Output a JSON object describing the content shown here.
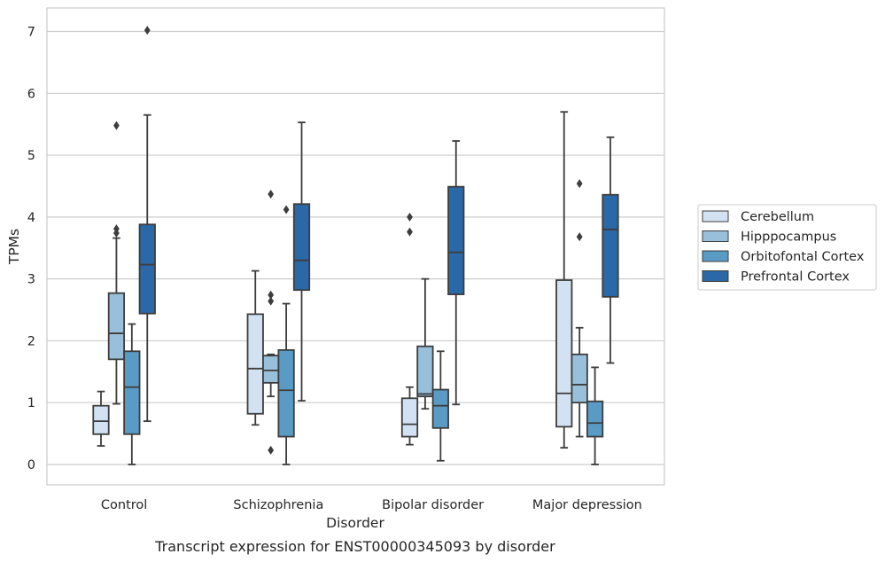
{
  "chart_data": {
    "type": "box",
    "title": "",
    "caption": "Transcript expression for ENST00000345093 by disorder",
    "xlabel": "Disorder",
    "ylabel": "TPMs",
    "ylim": [
      -0.33,
      7.38
    ],
    "yticks": [
      0,
      1,
      2,
      3,
      4,
      5,
      6,
      7
    ],
    "grid": "horizontal",
    "legend_position": "right",
    "categories": [
      "Control",
      "Schizophrenia",
      "Bipolar disorder",
      "Major depression"
    ],
    "series": [
      {
        "name": "Cerebellum",
        "color": "#d2e2f2",
        "boxes": [
          {
            "whislo": 0.3,
            "q1": 0.49,
            "med": 0.7,
            "q3": 0.95,
            "whishi": 1.18,
            "fliers": []
          },
          {
            "whislo": 0.64,
            "q1": 0.82,
            "med": 1.55,
            "q3": 2.43,
            "whishi": 3.13,
            "fliers": []
          },
          {
            "whislo": 0.32,
            "q1": 0.45,
            "med": 0.65,
            "q3": 1.07,
            "whishi": 1.25,
            "fliers": [
              3.76,
              4.0
            ]
          },
          {
            "whislo": 0.27,
            "q1": 0.61,
            "med": 1.15,
            "q3": 2.98,
            "whishi": 5.7,
            "fliers": []
          }
        ]
      },
      {
        "name": "Hipppocampus",
        "color": "#99c0db",
        "boxes": [
          {
            "whislo": 0.98,
            "q1": 1.7,
            "med": 2.12,
            "q3": 2.77,
            "whishi": 3.66,
            "fliers": [
              3.74,
              3.81,
              5.48
            ]
          },
          {
            "whislo": 1.1,
            "q1": 1.32,
            "med": 1.52,
            "q3": 1.76,
            "whishi": 1.78,
            "fliers": [
              0.23,
              2.64,
              2.74,
              4.37
            ]
          },
          {
            "whislo": 0.9,
            "q1": 1.1,
            "med": 1.14,
            "q3": 1.91,
            "whishi": 3.0,
            "fliers": []
          },
          {
            "whislo": 0.45,
            "q1": 1.0,
            "med": 1.29,
            "q3": 1.78,
            "whishi": 2.21,
            "fliers": [
              3.68,
              4.54
            ]
          }
        ]
      },
      {
        "name": "Orbitofontal Cortex",
        "color": "#5a9bc6",
        "boxes": [
          {
            "whislo": 0.0,
            "q1": 0.49,
            "med": 1.25,
            "q3": 1.83,
            "whishi": 2.27,
            "fliers": []
          },
          {
            "whislo": 0.0,
            "q1": 0.45,
            "med": 1.2,
            "q3": 1.85,
            "whishi": 2.6,
            "fliers": [
              4.12
            ]
          },
          {
            "whislo": 0.06,
            "q1": 0.59,
            "med": 0.95,
            "q3": 1.21,
            "whishi": 1.83,
            "fliers": []
          },
          {
            "whislo": 0.0,
            "q1": 0.45,
            "med": 0.67,
            "q3": 1.02,
            "whishi": 1.57,
            "fliers": []
          }
        ]
      },
      {
        "name": "Prefrontal Cortex",
        "color": "#2a68a8",
        "boxes": [
          {
            "whislo": 0.7,
            "q1": 2.44,
            "med": 3.23,
            "q3": 3.88,
            "whishi": 5.65,
            "fliers": [
              7.02
            ]
          },
          {
            "whislo": 1.03,
            "q1": 2.82,
            "med": 3.3,
            "q3": 4.21,
            "whishi": 5.53,
            "fliers": []
          },
          {
            "whislo": 0.97,
            "q1": 2.75,
            "med": 3.43,
            "q3": 4.49,
            "whishi": 5.23,
            "fliers": []
          },
          {
            "whislo": 1.64,
            "q1": 2.71,
            "med": 3.8,
            "q3": 4.36,
            "whishi": 5.29,
            "fliers": []
          }
        ]
      }
    ]
  }
}
